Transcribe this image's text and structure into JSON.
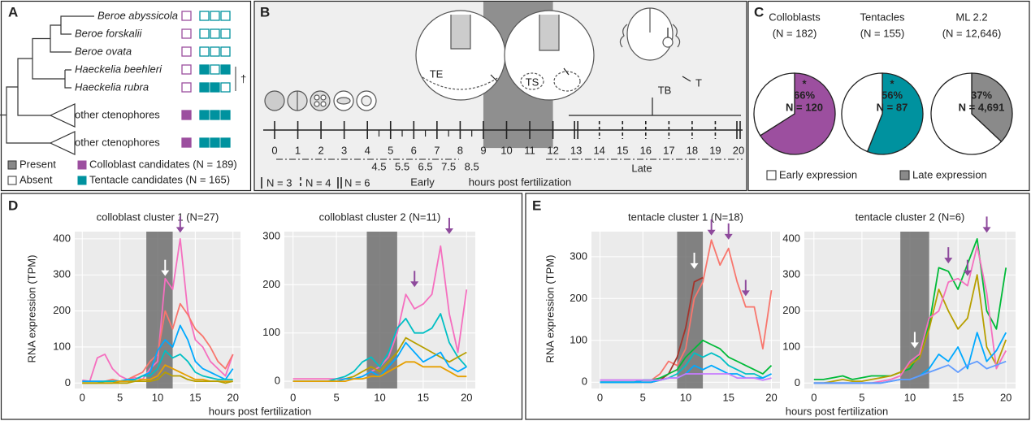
{
  "panel_a": {
    "label": "A",
    "taxa": [
      {
        "name": "Beroe abyssicola",
        "italic": true,
        "colloblast": false,
        "tentacle": [
          false,
          false,
          false
        ]
      },
      {
        "name": "Beroe forskalii",
        "italic": true,
        "colloblast": false,
        "tentacle": [
          false,
          false,
          false
        ]
      },
      {
        "name": "Beroe ovata",
        "italic": true,
        "colloblast": false,
        "tentacle": [
          false,
          false,
          false
        ]
      },
      {
        "name": "Haeckelia beehleri",
        "italic": true,
        "colloblast": false,
        "tentacle": [
          true,
          false,
          true
        ]
      },
      {
        "name": "Haeckelia rubra",
        "italic": true,
        "colloblast": false,
        "tentacle": [
          true,
          true,
          false
        ]
      },
      {
        "name": "other ctenophores",
        "italic": false,
        "colloblast": true,
        "tentacle": [
          true,
          true,
          true
        ]
      },
      {
        "name": "other ctenophores",
        "italic": false,
        "colloblast": true,
        "tentacle": [
          true,
          true,
          true
        ]
      }
    ],
    "dagger": "†",
    "legend": [
      {
        "label": "Present",
        "color": "#8a8a8a"
      },
      {
        "label": "Absent",
        "color": "#ffffff"
      },
      {
        "label": "Colloblast candidates (N = 189)",
        "color": "#9c4f9f"
      },
      {
        "label": "Tentacle candidates (N = 165)",
        "color": "#00929f"
      }
    ]
  },
  "panel_b": {
    "label": "B",
    "ticks": [
      0,
      1,
      2,
      3,
      4,
      5,
      6,
      7,
      8,
      9,
      10,
      11,
      12,
      13,
      14,
      15,
      16,
      17,
      18,
      19,
      20
    ],
    "tick_styles": [
      "solid",
      "solid",
      "solid",
      "solid",
      "solid",
      "solid",
      "solid",
      "solid",
      "solid",
      "solid",
      "solid",
      "solid",
      "solid",
      "double",
      "dashed",
      "dashed",
      "dashed",
      "dashed",
      "dashed",
      "dashed",
      "double"
    ],
    "half_ticks": [
      4.5,
      5.5,
      6.5,
      7.5,
      8.5
    ],
    "shade": [
      9,
      12
    ],
    "phases": [
      "Early",
      "Late"
    ],
    "xlabel": "hours post fertilization",
    "legend": [
      {
        "label": "N = 3",
        "style": "solid"
      },
      {
        "label": "N = 4",
        "style": "dashed"
      },
      {
        "label": "N = 6",
        "style": "double"
      }
    ],
    "embryo_labels": [
      "TE",
      "TS",
      "TB",
      "T"
    ]
  },
  "panel_c": {
    "label": "C",
    "legend": [
      {
        "label": "Early expression",
        "color": "#ffffff"
      },
      {
        "label": "Late expression",
        "color": "#8a8a8a"
      }
    ]
  },
  "panel_d": {
    "label": "D",
    "ylabel": "RNA expression (TPM)",
    "xlabel": "hours post fertilization"
  },
  "panel_e": {
    "label": "E",
    "ylabel": "RNA expression (TPM)",
    "xlabel": "hours post fertilization"
  },
  "chart_data": [
    {
      "type": "pie",
      "title": "Colloblasts",
      "subtitle": "(N = 182)",
      "values": [
        66,
        34
      ],
      "colors": [
        "#9c4f9f",
        "#ffffff"
      ],
      "value_labels": [
        "66%",
        null
      ],
      "count_labels": [
        "N = 120",
        null
      ],
      "marker": "*"
    },
    {
      "type": "pie",
      "title": "Tentacles",
      "subtitle": "(N = 155)",
      "values": [
        56,
        44
      ],
      "colors": [
        "#00929f",
        "#ffffff"
      ],
      "value_labels": [
        "56%",
        null
      ],
      "count_labels": [
        "N = 87",
        null
      ],
      "marker": "*"
    },
    {
      "type": "pie",
      "title": "ML 2.2",
      "subtitle": "(N = 12,646)",
      "values": [
        37,
        63
      ],
      "colors": [
        "#8a8a8a",
        "#ffffff"
      ],
      "value_labels": [
        "37%",
        null
      ],
      "count_labels": [
        "N = 4,691",
        null
      ]
    },
    {
      "type": "line",
      "title": "colloblast cluster 1 (N=27)",
      "x": [
        0,
        1,
        2,
        3,
        4,
        5,
        6,
        7,
        8,
        9,
        10,
        11,
        12,
        13,
        14,
        15,
        16,
        17,
        18,
        19,
        20
      ],
      "xlim": [
        -1,
        21
      ],
      "xticks": [
        0,
        5,
        10,
        15,
        20
      ],
      "ylim": [
        -15,
        420
      ],
      "yticks": [
        0,
        100,
        200,
        300,
        400
      ],
      "shade": [
        8.5,
        12
      ],
      "series": [
        {
          "color": "#f56fbf",
          "values": [
            8,
            5,
            70,
            80,
            40,
            20,
            10,
            15,
            10,
            40,
            60,
            290,
            260,
            400,
            200,
            120,
            100,
            60,
            40,
            20,
            80
          ]
        },
        {
          "color": "#f8766d",
          "values": [
            5,
            5,
            5,
            5,
            10,
            5,
            10,
            20,
            30,
            60,
            80,
            200,
            150,
            220,
            190,
            150,
            130,
            100,
            60,
            40,
            80
          ]
        },
        {
          "color": "#00a9ff",
          "values": [
            5,
            5,
            5,
            5,
            5,
            5,
            10,
            10,
            20,
            30,
            90,
            120,
            100,
            160,
            120,
            60,
            40,
            30,
            20,
            10,
            40
          ]
        },
        {
          "color": "#00bfc4",
          "values": [
            0,
            0,
            0,
            5,
            5,
            5,
            5,
            10,
            20,
            20,
            40,
            90,
            70,
            80,
            60,
            30,
            20,
            15,
            10,
            10,
            10
          ]
        },
        {
          "color": "#e69f00",
          "values": [
            0,
            0,
            0,
            0,
            0,
            5,
            5,
            5,
            10,
            10,
            20,
            50,
            40,
            30,
            20,
            10,
            10,
            5,
            5,
            5,
            5
          ]
        },
        {
          "color": "#b79f00",
          "values": [
            0,
            0,
            0,
            0,
            0,
            0,
            0,
            5,
            5,
            5,
            10,
            30,
            20,
            20,
            10,
            5,
            5,
            5,
            5,
            0,
            5
          ]
        }
      ],
      "annotations": [
        {
          "x": 11,
          "y": 290,
          "color": "#ffffff"
        },
        {
          "x": 13,
          "y": 410,
          "color": "#8e4a9c"
        }
      ]
    },
    {
      "type": "line",
      "title": "colloblast cluster 2 (N=11)",
      "x": [
        0,
        1,
        2,
        3,
        4,
        5,
        6,
        7,
        8,
        9,
        10,
        11,
        12,
        13,
        14,
        15,
        16,
        17,
        18,
        19,
        20
      ],
      "xlim": [
        -1,
        21
      ],
      "xticks": [
        0,
        5,
        10,
        15,
        20
      ],
      "ylim": [
        -15,
        310
      ],
      "yticks": [
        0,
        100,
        200,
        300
      ],
      "shade": [
        8.5,
        12
      ],
      "series": [
        {
          "color": "#f56fbf",
          "values": [
            5,
            5,
            5,
            5,
            5,
            5,
            5,
            5,
            10,
            20,
            30,
            50,
            100,
            180,
            150,
            160,
            180,
            280,
            140,
            60,
            190
          ]
        },
        {
          "color": "#00bfc4",
          "values": [
            0,
            0,
            0,
            0,
            0,
            5,
            10,
            20,
            40,
            50,
            30,
            60,
            110,
            130,
            100,
            100,
            110,
            140,
            80,
            50,
            30
          ]
        },
        {
          "color": "#b79f00",
          "values": [
            0,
            0,
            0,
            0,
            0,
            0,
            5,
            10,
            20,
            30,
            20,
            40,
            60,
            90,
            80,
            70,
            60,
            50,
            40,
            50,
            60
          ]
        },
        {
          "color": "#00a9ff",
          "values": [
            0,
            0,
            0,
            0,
            0,
            0,
            5,
            5,
            10,
            20,
            10,
            30,
            50,
            80,
            60,
            40,
            50,
            60,
            30,
            20,
            30
          ]
        },
        {
          "color": "#e69f00",
          "values": [
            0,
            0,
            0,
            0,
            0,
            0,
            0,
            5,
            5,
            10,
            10,
            20,
            30,
            40,
            40,
            30,
            30,
            30,
            20,
            10,
            10
          ]
        }
      ],
      "annotations": [
        {
          "x": 14,
          "y": 190,
          "color": "#8e4a9c"
        },
        {
          "x": 18,
          "y": 300,
          "color": "#8e4a9c"
        }
      ]
    },
    {
      "type": "line",
      "title": "tentacle cluster 1 (N=18)",
      "x": [
        0,
        1,
        2,
        3,
        4,
        5,
        6,
        7,
        8,
        9,
        10,
        11,
        12,
        13,
        14,
        15,
        16,
        17,
        18,
        19,
        20
      ],
      "xlim": [
        -1,
        21
      ],
      "xticks": [
        0,
        5,
        10,
        15,
        20
      ],
      "ylim": [
        -15,
        360
      ],
      "yticks": [
        0,
        100,
        200,
        300
      ],
      "shade": [
        9,
        12
      ],
      "series": [
        {
          "color": "#f8766d",
          "values": [
            5,
            5,
            5,
            5,
            5,
            5,
            5,
            20,
            50,
            40,
            80,
            200,
            240,
            340,
            280,
            320,
            240,
            180,
            180,
            80,
            220
          ]
        },
        {
          "color": "#a3342c",
          "values": [
            0,
            0,
            0,
            0,
            0,
            0,
            0,
            5,
            20,
            60,
            130,
            240,
            250,
            null,
            null,
            null,
            null,
            null,
            null,
            null,
            null
          ]
        },
        {
          "color": "#00ba38",
          "values": [
            0,
            0,
            0,
            0,
            0,
            5,
            5,
            10,
            20,
            30,
            60,
            80,
            100,
            90,
            80,
            60,
            50,
            40,
            30,
            20,
            40
          ]
        },
        {
          "color": "#00bfc4",
          "values": [
            0,
            0,
            0,
            0,
            0,
            5,
            5,
            5,
            10,
            20,
            40,
            70,
            60,
            70,
            60,
            40,
            30,
            20,
            20,
            10,
            20
          ]
        },
        {
          "color": "#00a9ff",
          "values": [
            0,
            0,
            0,
            0,
            0,
            0,
            0,
            5,
            10,
            10,
            20,
            40,
            30,
            40,
            30,
            20,
            20,
            10,
            10,
            10,
            20
          ]
        },
        {
          "color": "#c77cff",
          "values": [
            5,
            5,
            5,
            5,
            5,
            5,
            5,
            5,
            10,
            10,
            20,
            20,
            20,
            20,
            20,
            20,
            10,
            10,
            10,
            5,
            10
          ]
        }
      ],
      "annotations": [
        {
          "x": 11,
          "y": 265,
          "color": "#ffffff"
        },
        {
          "x": 13,
          "y": 345,
          "color": "#8e4a9c"
        },
        {
          "x": 15,
          "y": 335,
          "color": "#8e4a9c"
        },
        {
          "x": 17,
          "y": 200,
          "color": "#8e4a9c"
        }
      ]
    },
    {
      "type": "line",
      "title": "tentacle cluster 2 (N=6)",
      "x": [
        0,
        1,
        2,
        3,
        4,
        5,
        6,
        7,
        8,
        9,
        10,
        11,
        12,
        13,
        14,
        15,
        16,
        17,
        18,
        19,
        20
      ],
      "xlim": [
        -1,
        21
      ],
      "xticks": [
        0,
        5,
        10,
        15,
        20
      ],
      "ylim": [
        -15,
        420
      ],
      "yticks": [
        0,
        100,
        200,
        300,
        400
      ],
      "shade": [
        9,
        12
      ],
      "series": [
        {
          "color": "#00ba38",
          "values": [
            10,
            10,
            15,
            20,
            10,
            15,
            20,
            20,
            20,
            30,
            40,
            80,
            160,
            320,
            310,
            260,
            330,
            400,
            200,
            150,
            320
          ]
        },
        {
          "color": "#b79f00",
          "values": [
            0,
            0,
            5,
            10,
            5,
            5,
            10,
            15,
            20,
            30,
            50,
            70,
            150,
            260,
            200,
            150,
            180,
            300,
            100,
            50,
            120
          ]
        },
        {
          "color": "#f56fbf",
          "values": [
            0,
            0,
            0,
            0,
            0,
            0,
            0,
            5,
            10,
            20,
            60,
            80,
            180,
            200,
            280,
            290,
            270,
            380,
            250,
            40,
            90
          ]
        },
        {
          "color": "#00a9ff",
          "values": [
            0,
            0,
            0,
            0,
            0,
            0,
            0,
            0,
            5,
            10,
            10,
            20,
            40,
            80,
            60,
            100,
            40,
            140,
            60,
            90,
            140
          ]
        },
        {
          "color": "#619cff",
          "values": [
            0,
            0,
            0,
            0,
            0,
            0,
            0,
            0,
            5,
            10,
            10,
            20,
            30,
            40,
            50,
            30,
            50,
            60,
            40,
            50,
            60
          ]
        }
      ],
      "annotations": [
        {
          "x": 10.5,
          "y": 90,
          "color": "#ffffff"
        },
        {
          "x": 14,
          "y": 325,
          "color": "#8e4a9c"
        },
        {
          "x": 16,
          "y": 290,
          "color": "#8e4a9c"
        },
        {
          "x": 18,
          "y": 410,
          "color": "#8e4a9c"
        }
      ]
    }
  ]
}
